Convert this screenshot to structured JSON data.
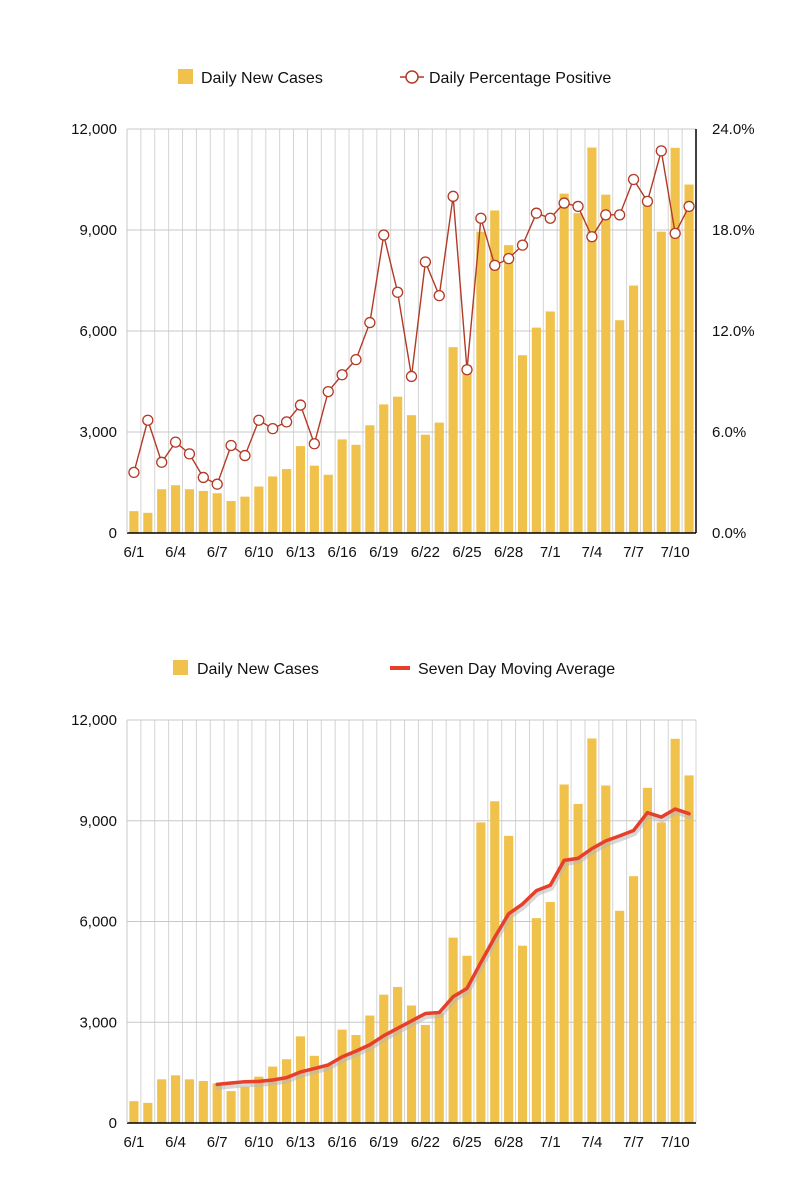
{
  "colors": {
    "bar": "#F0C24B",
    "bar_edge": "#E5B23A",
    "positive_line": "#B23A26",
    "average_line": "#E6402A",
    "grid": "#C8C8C8",
    "vgrid": "#D4D4D4",
    "axis": "#000000"
  },
  "chart_data": [
    {
      "type": "bar",
      "legend": [
        {
          "label": "Daily New Cases",
          "icon": "bar-swatch-icon"
        },
        {
          "label": "Daily Percentage Positive",
          "icon": "circle-marker-line-icon"
        }
      ],
      "xlabel": "",
      "ylabel": "",
      "ylim": [
        0,
        12000
      ],
      "y2lim": [
        0,
        24
      ],
      "yticks": [
        "0",
        "3,000",
        "6,000",
        "9,000",
        "12,000"
      ],
      "y2ticks": [
        "0.0%",
        "6.0%",
        "12.0%",
        "18.0%",
        "24.0%"
      ],
      "xtick_labels": [
        "6/1",
        "6/4",
        "6/7",
        "6/10",
        "6/13",
        "6/16",
        "6/19",
        "6/22",
        "6/25",
        "6/28",
        "7/1",
        "7/4",
        "7/7",
        "7/10"
      ],
      "categories": [
        "6/1",
        "6/2",
        "6/3",
        "6/4",
        "6/5",
        "6/6",
        "6/7",
        "6/8",
        "6/9",
        "6/10",
        "6/11",
        "6/12",
        "6/13",
        "6/14",
        "6/15",
        "6/16",
        "6/17",
        "6/18",
        "6/19",
        "6/20",
        "6/21",
        "6/22",
        "6/23",
        "6/24",
        "6/25",
        "6/26",
        "6/27",
        "6/28",
        "6/29",
        "6/30",
        "7/1",
        "7/2",
        "7/3",
        "7/4",
        "7/5",
        "7/6",
        "7/7",
        "7/8",
        "7/9",
        "7/10",
        "7/11"
      ],
      "series": [
        {
          "name": "Daily New Cases",
          "kind": "bar",
          "values": [
            650,
            600,
            1300,
            1420,
            1300,
            1250,
            1180,
            950,
            1080,
            1380,
            1680,
            1900,
            2580,
            2000,
            1730,
            2780,
            2620,
            3200,
            3820,
            4050,
            3500,
            2920,
            3280,
            5520,
            4980,
            8950,
            9580,
            8550,
            5280,
            6100,
            6580,
            10080,
            9500,
            11450,
            10050,
            6320,
            7350,
            9980,
            8950,
            11440,
            10350
          ]
        },
        {
          "name": "Daily Percentage Positive",
          "kind": "line",
          "axis": "y2",
          "values": [
            3.6,
            6.7,
            4.2,
            5.4,
            4.7,
            3.3,
            2.9,
            5.2,
            4.6,
            6.7,
            6.2,
            6.6,
            7.6,
            5.3,
            8.4,
            9.4,
            10.3,
            12.5,
            17.7,
            14.3,
            9.3,
            16.1,
            14.1,
            20.0,
            9.7,
            18.7,
            15.9,
            16.3,
            17.1,
            19.0,
            18.7,
            19.6,
            19.4,
            17.6,
            18.9,
            18.9,
            21.0,
            19.7,
            22.7,
            17.8,
            19.4
          ]
        }
      ]
    },
    {
      "type": "bar",
      "legend": [
        {
          "label": "Daily New Cases",
          "icon": "bar-swatch-icon"
        },
        {
          "label": "Seven Day Moving Average",
          "icon": "line-swatch-icon"
        }
      ],
      "xlabel": "",
      "ylabel": "",
      "ylim": [
        0,
        12000
      ],
      "yticks": [
        "0",
        "3,000",
        "6,000",
        "9,000",
        "12,000"
      ],
      "xtick_labels": [
        "6/1",
        "6/4",
        "6/7",
        "6/10",
        "6/13",
        "6/16",
        "6/19",
        "6/22",
        "6/25",
        "6/28",
        "7/1",
        "7/4",
        "7/7",
        "7/10"
      ],
      "categories": [
        "6/1",
        "6/2",
        "6/3",
        "6/4",
        "6/5",
        "6/6",
        "6/7",
        "6/8",
        "6/9",
        "6/10",
        "6/11",
        "6/12",
        "6/13",
        "6/14",
        "6/15",
        "6/16",
        "6/17",
        "6/18",
        "6/19",
        "6/20",
        "6/21",
        "6/22",
        "6/23",
        "6/24",
        "6/25",
        "6/26",
        "6/27",
        "6/28",
        "6/29",
        "6/30",
        "7/1",
        "7/2",
        "7/3",
        "7/4",
        "7/5",
        "7/6",
        "7/7",
        "7/8",
        "7/9",
        "7/10",
        "7/11"
      ],
      "series": [
        {
          "name": "Daily New Cases",
          "kind": "bar",
          "values": [
            650,
            600,
            1300,
            1420,
            1300,
            1250,
            1180,
            950,
            1080,
            1380,
            1680,
            1900,
            2580,
            2000,
            1730,
            2780,
            2620,
            3200,
            3820,
            4050,
            3500,
            2920,
            3280,
            5520,
            4980,
            8950,
            9580,
            8550,
            5280,
            6100,
            6580,
            10080,
            9500,
            11450,
            10050,
            6320,
            7350,
            9980,
            8950,
            11440,
            10350
          ]
        },
        {
          "name": "Seven Day Moving Average",
          "kind": "line",
          "values": [
            null,
            null,
            null,
            null,
            null,
            null,
            1150,
            1190,
            1230,
            1240,
            1280,
            1350,
            1520,
            1620,
            1730,
            1970,
            2140,
            2330,
            2600,
            2820,
            3040,
            3260,
            3290,
            3760,
            4010,
            4780,
            5530,
            6230,
            6520,
            6920,
            7080,
            7820,
            7880,
            8170,
            8400,
            8550,
            8710,
            9240,
            9110,
            9350,
            9210
          ]
        }
      ]
    }
  ]
}
